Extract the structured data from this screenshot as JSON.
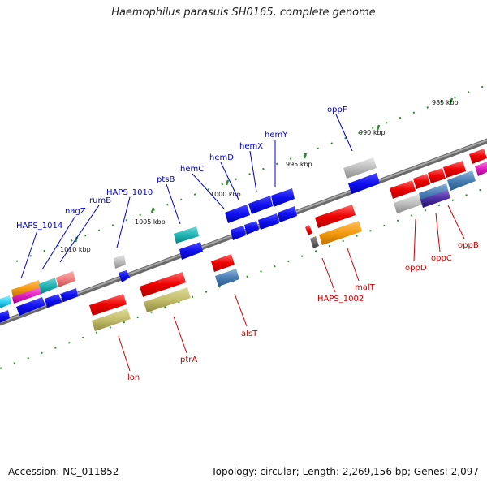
{
  "title": "Haemophilus parasuis SH0165, complete genome",
  "footer": {
    "accession": "Accession: NC_011852",
    "summary": "Topology: circular; Length: 2,269,156 bp; Genes: 2,097"
  },
  "colors": {
    "backbone": "#808080",
    "tick": "#2e8b2e",
    "label_forward": "#0000cc",
    "label_reverse": "#cc0000"
  },
  "scale_labels": [
    "985 kbp",
    "990 kbp",
    "995 kbp",
    "1000 kbp",
    "1005 kbp",
    "1010 kbp"
  ],
  "gene_labels_forward": [
    "oppF",
    "hemY",
    "hemX",
    "hemD",
    "hemC",
    "ptsB",
    "HAPS_1010",
    "rumB",
    "nagZ",
    "HAPS_1014"
  ],
  "gene_labels_reverse": [
    "oppB",
    "oppC",
    "oppD",
    "malT",
    "HAPS_1002",
    "alsT",
    "ptrA",
    "lon"
  ]
}
